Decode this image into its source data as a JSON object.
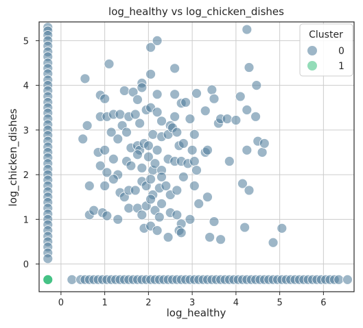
{
  "chart_data": {
    "type": "scatter",
    "title": "log_healthy vs log_chicken_dishes",
    "xlabel": "log_healthy",
    "ylabel": "log_chicken_dishes",
    "xlim": [
      -0.5,
      6.7
    ],
    "ylim": [
      -0.62,
      5.42
    ],
    "x_ticks": [
      0,
      1,
      2,
      3,
      4,
      5,
      6
    ],
    "y_ticks": [
      0,
      1,
      2,
      3,
      4,
      5
    ],
    "x_tick_labels": [
      "0",
      "1",
      "2",
      "3",
      "4",
      "5",
      "6"
    ],
    "y_tick_labels": [
      "0",
      "1",
      "2",
      "3",
      "4",
      "5"
    ],
    "grid": true,
    "legend": {
      "title": "Cluster",
      "placement": "top-right",
      "entries": [
        {
          "label": "0",
          "color": "#4d7a99"
        },
        {
          "label": "1",
          "color": "#3bbf7e"
        }
      ]
    },
    "series": [
      {
        "name": "0",
        "color": "#4d7a99",
        "points": [
          [
            -0.3,
            5.3
          ],
          [
            -0.3,
            5.22
          ],
          [
            -0.3,
            5.12
          ],
          [
            -0.3,
            5.0
          ],
          [
            -0.3,
            4.88
          ],
          [
            -0.3,
            4.75
          ],
          [
            -0.3,
            4.64
          ],
          [
            -0.3,
            4.5
          ],
          [
            -0.3,
            4.38
          ],
          [
            -0.3,
            4.26
          ],
          [
            -0.3,
            4.12
          ],
          [
            -0.3,
            4.0
          ],
          [
            -0.3,
            3.88
          ],
          [
            -0.3,
            3.75
          ],
          [
            -0.3,
            3.62
          ],
          [
            -0.3,
            3.5
          ],
          [
            -0.3,
            3.38
          ],
          [
            -0.3,
            3.25
          ],
          [
            -0.3,
            3.12
          ],
          [
            -0.3,
            3.0
          ],
          [
            -0.3,
            2.88
          ],
          [
            -0.3,
            2.75
          ],
          [
            -0.3,
            2.62
          ],
          [
            -0.3,
            2.5
          ],
          [
            -0.3,
            2.38
          ],
          [
            -0.3,
            2.25
          ],
          [
            -0.3,
            2.12
          ],
          [
            -0.3,
            2.0
          ],
          [
            -0.3,
            1.88
          ],
          [
            -0.3,
            1.75
          ],
          [
            -0.3,
            1.62
          ],
          [
            -0.3,
            1.5
          ],
          [
            -0.3,
            1.38
          ],
          [
            -0.3,
            1.25
          ],
          [
            -0.3,
            1.12
          ],
          [
            -0.3,
            1.0
          ],
          [
            -0.3,
            0.88
          ],
          [
            -0.3,
            0.75
          ],
          [
            -0.3,
            0.62
          ],
          [
            -0.3,
            0.5
          ],
          [
            -0.3,
            0.38
          ],
          [
            -0.3,
            0.25
          ],
          [
            -0.3,
            0.12
          ],
          [
            0.25,
            -0.35
          ],
          [
            0.45,
            -0.35
          ],
          [
            0.55,
            -0.35
          ],
          [
            0.65,
            -0.35
          ],
          [
            0.75,
            -0.35
          ],
          [
            0.85,
            -0.35
          ],
          [
            0.95,
            -0.35
          ],
          [
            1.05,
            -0.35
          ],
          [
            1.15,
            -0.35
          ],
          [
            1.25,
            -0.35
          ],
          [
            1.35,
            -0.35
          ],
          [
            1.45,
            -0.35
          ],
          [
            1.55,
            -0.35
          ],
          [
            1.65,
            -0.35
          ],
          [
            1.75,
            -0.35
          ],
          [
            1.85,
            -0.35
          ],
          [
            1.95,
            -0.35
          ],
          [
            2.05,
            -0.35
          ],
          [
            2.15,
            -0.35
          ],
          [
            2.25,
            -0.35
          ],
          [
            2.35,
            -0.35
          ],
          [
            2.45,
            -0.35
          ],
          [
            2.55,
            -0.35
          ],
          [
            2.65,
            -0.35
          ],
          [
            2.75,
            -0.35
          ],
          [
            2.85,
            -0.35
          ],
          [
            2.95,
            -0.35
          ],
          [
            3.05,
            -0.35
          ],
          [
            3.15,
            -0.35
          ],
          [
            3.25,
            -0.35
          ],
          [
            3.35,
            -0.35
          ],
          [
            3.45,
            -0.35
          ],
          [
            3.55,
            -0.35
          ],
          [
            3.65,
            -0.35
          ],
          [
            3.75,
            -0.35
          ],
          [
            3.85,
            -0.35
          ],
          [
            3.95,
            -0.35
          ],
          [
            4.05,
            -0.35
          ],
          [
            4.15,
            -0.35
          ],
          [
            4.25,
            -0.35
          ],
          [
            4.35,
            -0.35
          ],
          [
            4.45,
            -0.35
          ],
          [
            4.55,
            -0.35
          ],
          [
            4.65,
            -0.35
          ],
          [
            4.75,
            -0.35
          ],
          [
            4.85,
            -0.35
          ],
          [
            4.95,
            -0.35
          ],
          [
            5.05,
            -0.35
          ],
          [
            5.15,
            -0.35
          ],
          [
            5.25,
            -0.35
          ],
          [
            5.35,
            -0.35
          ],
          [
            5.45,
            -0.35
          ],
          [
            5.55,
            -0.35
          ],
          [
            5.65,
            -0.35
          ],
          [
            5.75,
            -0.35
          ],
          [
            5.85,
            -0.35
          ],
          [
            5.95,
            -0.35
          ],
          [
            6.05,
            -0.35
          ],
          [
            6.15,
            -0.35
          ],
          [
            6.25,
            -0.35
          ],
          [
            6.35,
            -0.35
          ],
          [
            6.55,
            -0.35
          ],
          [
            0.55,
            4.15
          ],
          [
            1.1,
            4.48
          ],
          [
            1.85,
            4.05
          ],
          [
            2.05,
            4.85
          ],
          [
            2.2,
            5.0
          ],
          [
            2.6,
            4.38
          ],
          [
            4.25,
            5.25
          ],
          [
            4.3,
            4.4
          ],
          [
            4.47,
            4.0
          ],
          [
            0.9,
            3.78
          ],
          [
            1.0,
            3.7
          ],
          [
            1.45,
            3.88
          ],
          [
            1.65,
            3.85
          ],
          [
            1.85,
            3.95
          ],
          [
            2.05,
            4.25
          ],
          [
            1.75,
            3.68
          ],
          [
            2.2,
            3.8
          ],
          [
            2.6,
            3.8
          ],
          [
            3.1,
            3.82
          ],
          [
            3.45,
            3.9
          ],
          [
            3.5,
            3.7
          ],
          [
            3.3,
            3.43
          ],
          [
            4.1,
            3.75
          ],
          [
            4.25,
            3.45
          ],
          [
            4.45,
            3.3
          ],
          [
            0.6,
            3.1
          ],
          [
            0.9,
            3.3
          ],
          [
            1.05,
            3.3
          ],
          [
            1.2,
            3.35
          ],
          [
            1.35,
            3.35
          ],
          [
            1.4,
            3.1
          ],
          [
            1.55,
            3.3
          ],
          [
            1.7,
            3.35
          ],
          [
            1.8,
            3.15
          ],
          [
            1.95,
            3.45
          ],
          [
            2.05,
            3.5
          ],
          [
            2.2,
            3.4
          ],
          [
            2.3,
            3.2
          ],
          [
            2.5,
            3.1
          ],
          [
            2.6,
            3.3
          ],
          [
            2.75,
            3.6
          ],
          [
            2.85,
            3.62
          ],
          [
            2.95,
            3.25
          ],
          [
            3.05,
            2.9
          ],
          [
            3.6,
            3.15
          ],
          [
            3.65,
            3.25
          ],
          [
            3.8,
            3.25
          ],
          [
            4.0,
            3.22
          ],
          [
            0.5,
            2.8
          ],
          [
            0.85,
            2.5
          ],
          [
            1.0,
            2.55
          ],
          [
            1.15,
            2.95
          ],
          [
            1.3,
            2.8
          ],
          [
            1.5,
            2.95
          ],
          [
            1.6,
            2.6
          ],
          [
            1.75,
            2.65
          ],
          [
            1.8,
            2.55
          ],
          [
            1.9,
            2.7
          ],
          [
            2.0,
            2.65
          ],
          [
            2.1,
            2.9
          ],
          [
            2.2,
            2.55
          ],
          [
            2.3,
            2.85
          ],
          [
            2.45,
            2.9
          ],
          [
            2.55,
            3.05
          ],
          [
            2.65,
            2.95
          ],
          [
            2.7,
            2.65
          ],
          [
            2.8,
            2.7
          ],
          [
            3.0,
            2.55
          ],
          [
            3.3,
            2.5
          ],
          [
            3.35,
            2.55
          ],
          [
            4.25,
            2.55
          ],
          [
            4.5,
            2.75
          ],
          [
            4.6,
            2.5
          ],
          [
            4.65,
            2.7
          ],
          [
            0.9,
            2.2
          ],
          [
            1.05,
            2.05
          ],
          [
            1.2,
            2.35
          ],
          [
            1.3,
            2.0
          ],
          [
            1.5,
            2.3
          ],
          [
            1.6,
            2.2
          ],
          [
            1.75,
            2.45
          ],
          [
            1.85,
            2.15
          ],
          [
            2.0,
            2.4
          ],
          [
            2.1,
            2.1
          ],
          [
            2.15,
            2.25
          ],
          [
            2.3,
            2.1
          ],
          [
            2.45,
            2.35
          ],
          [
            2.6,
            2.3
          ],
          [
            2.75,
            2.3
          ],
          [
            2.9,
            2.25
          ],
          [
            3.05,
            2.3
          ],
          [
            3.1,
            2.1
          ],
          [
            3.85,
            2.3
          ],
          [
            0.65,
            1.75
          ],
          [
            1.0,
            1.75
          ],
          [
            1.2,
            1.9
          ],
          [
            1.35,
            1.6
          ],
          [
            1.45,
            1.5
          ],
          [
            1.55,
            1.65
          ],
          [
            1.7,
            1.65
          ],
          [
            1.85,
            1.85
          ],
          [
            1.95,
            1.75
          ],
          [
            2.05,
            1.9
          ],
          [
            2.1,
            1.55
          ],
          [
            2.25,
            1.7
          ],
          [
            2.3,
            1.95
          ],
          [
            2.4,
            1.75
          ],
          [
            2.5,
            1.55
          ],
          [
            2.65,
            1.65
          ],
          [
            2.8,
            1.95
          ],
          [
            3.05,
            1.75
          ],
          [
            3.15,
            1.35
          ],
          [
            3.35,
            1.5
          ],
          [
            4.15,
            1.8
          ],
          [
            4.3,
            1.65
          ],
          [
            0.65,
            1.1
          ],
          [
            0.75,
            1.2
          ],
          [
            0.95,
            1.15
          ],
          [
            1.05,
            1.08
          ],
          [
            1.3,
            1.0
          ],
          [
            1.55,
            1.25
          ],
          [
            1.75,
            1.25
          ],
          [
            1.85,
            1.1
          ],
          [
            1.95,
            1.3
          ],
          [
            2.05,
            1.45
          ],
          [
            2.15,
            1.2
          ],
          [
            2.25,
            1.05
          ],
          [
            2.3,
            1.35
          ],
          [
            2.5,
            1.15
          ],
          [
            2.65,
            1.1
          ],
          [
            2.75,
            0.9
          ],
          [
            2.95,
            1.0
          ],
          [
            3.5,
            0.95
          ],
          [
            1.9,
            0.8
          ],
          [
            2.05,
            0.85
          ],
          [
            2.2,
            0.75
          ],
          [
            2.45,
            0.6
          ],
          [
            2.7,
            0.75
          ],
          [
            2.75,
            0.7
          ],
          [
            3.4,
            0.6
          ],
          [
            3.65,
            0.55
          ],
          [
            4.2,
            0.82
          ],
          [
            4.85,
            0.48
          ],
          [
            5.05,
            0.8
          ]
        ]
      },
      {
        "name": "1",
        "color": "#3bbf7e",
        "points": [
          [
            -0.3,
            -0.35
          ]
        ]
      }
    ]
  }
}
